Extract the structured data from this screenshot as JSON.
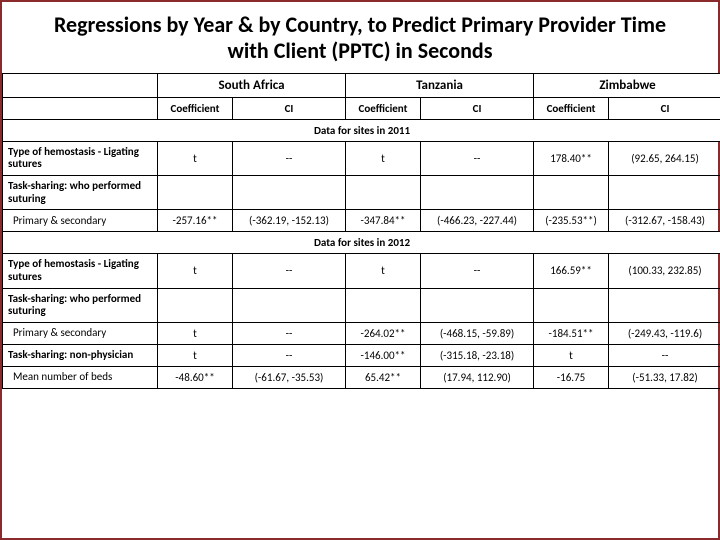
{
  "title": "Regressions by Year & by Country, to Predict Primary Provider Time with Client (PPTC) in Seconds",
  "countries": [
    "South Africa",
    "Tanzania",
    "Zimbabwe"
  ],
  "subheaders": [
    "Coefficient",
    "CI"
  ],
  "section2011": "Data for sites in 2011",
  "section2012": "Data for sites in 2012",
  "rows2011": {
    "hemostasis": {
      "label": "Type of hemostasis\n - Ligating sutures",
      "sa_coef": "t",
      "sa_ci": "--",
      "tz_coef": "t",
      "tz_ci": "--",
      "zw_coef": "178.40**",
      "zw_ci": "(92.65, 264.15)"
    },
    "tasksharing_label": "Task-sharing: who performed suturing",
    "primary_secondary": {
      "label": "Primary & secondary",
      "sa_coef": "-257.16**",
      "sa_ci": "(-362.19, -152.13)",
      "tz_coef": "-347.84**",
      "tz_ci": "(-466.23, -227.44)",
      "zw_coef": "(-235.53**)",
      "zw_ci": "(-312.67, -158.43)"
    }
  },
  "rows2012": {
    "hemostasis": {
      "label": "Type of hemostasis\n - Ligating sutures",
      "sa_coef": "t",
      "sa_ci": "--",
      "tz_coef": "t",
      "tz_ci": "--",
      "zw_coef": "166.59**",
      "zw_ci": "(100.33, 232.85)"
    },
    "tasksharing_label": "Task-sharing: who performed suturing",
    "primary_secondary": {
      "label": "Primary & secondary",
      "sa_coef": "t",
      "sa_ci": "--",
      "tz_coef": "-264.02**",
      "tz_ci": "(-468.15, -59.89)",
      "zw_coef": "-184.51**",
      "zw_ci": "(-249.43, -119.6)"
    },
    "nonphysician": {
      "label": "Task-sharing: non-physician",
      "sa_coef": "t",
      "sa_ci": "--",
      "tz_coef": "-146.00**",
      "tz_ci": "(-315.18, -23.18)",
      "zw_coef": "t",
      "zw_ci": "--"
    },
    "beds": {
      "label": "Mean number of beds",
      "sa_coef": "-48.60**",
      "sa_ci": "(-61.67, -35.53)",
      "tz_coef": "65.42**",
      "tz_ci": "(17.94, 112.90)",
      "zw_coef": "-16.75",
      "zw_ci": "(-51.33, 17.82)"
    }
  },
  "colors": {
    "border": "#8b2a2a",
    "text": "#000000",
    "bg": "#ffffff"
  }
}
